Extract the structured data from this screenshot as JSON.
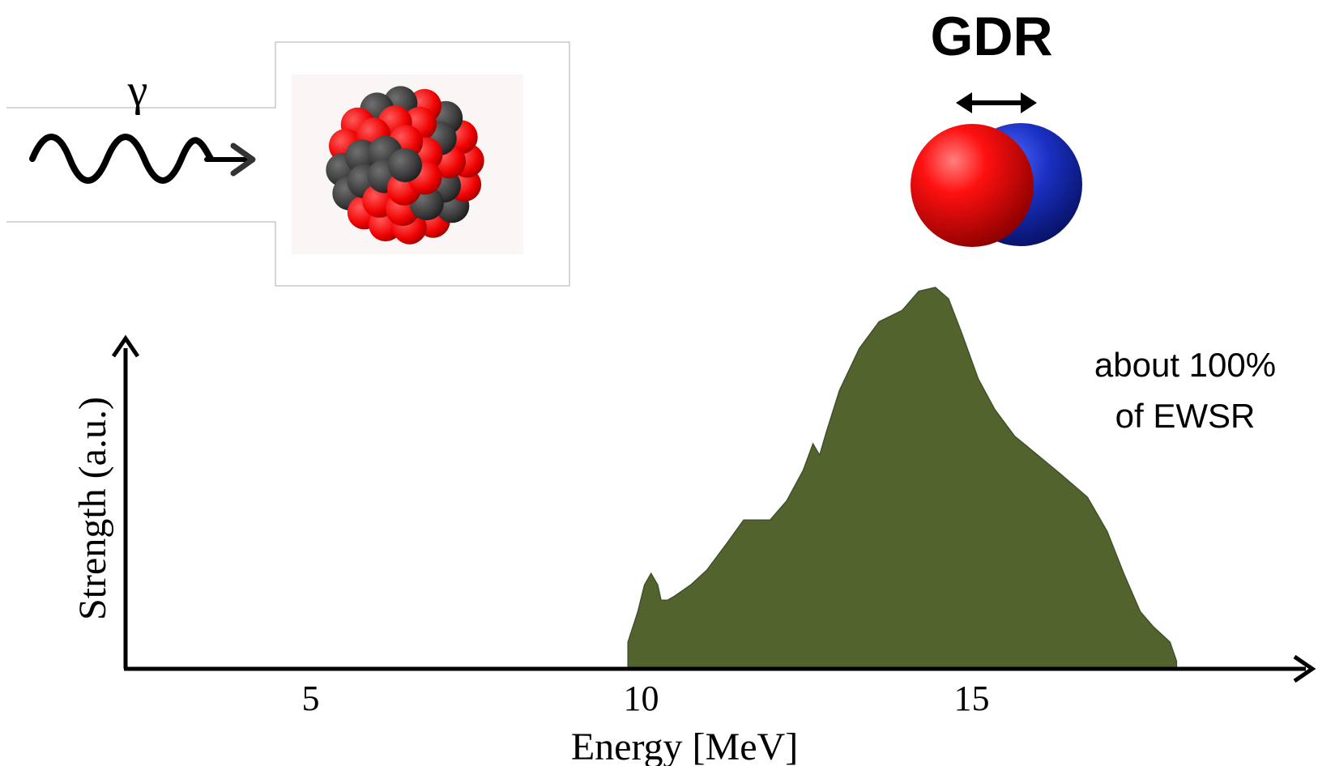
{
  "illustration": {
    "photon_symbol": "γ",
    "mode_label": "GDR",
    "proton_color": "#ff0000",
    "neutron_color": "#3a3a3a",
    "proton_sphere_color": "#e80000",
    "neutron_sphere_color": "#1020a0",
    "icons": [
      "photon-wave-icon",
      "nucleus-icon",
      "dipole-oscillation-icon"
    ]
  },
  "annotation": {
    "line1": "about 100%",
    "line2": "of EWSR"
  },
  "chart_data": {
    "type": "area",
    "title": "",
    "xlabel": "Energy [MeV]",
    "ylabel": "Strength (a.u.)",
    "x_ticks": [
      "5",
      "10",
      "15"
    ],
    "xlim": [
      2.2,
      19.5
    ],
    "ylim": [
      0,
      1
    ],
    "grid": false,
    "fill_color": "#53632d",
    "series": [
      {
        "x": [
          9.8,
          9.8,
          9.95,
          10.05,
          10.15,
          10.25,
          10.3,
          10.4,
          10.5,
          10.75,
          11.0,
          11.3,
          11.55,
          11.75,
          11.95,
          12.2,
          12.45,
          12.6,
          12.7,
          12.8,
          13.0,
          13.3,
          13.6,
          13.95,
          14.2,
          14.45,
          14.65,
          14.85,
          15.1,
          15.35,
          15.65,
          16.0,
          16.35,
          16.75,
          17.05,
          17.3,
          17.55,
          17.75,
          18.0,
          18.1,
          18.1
        ],
        "y": [
          0.0,
          0.07,
          0.15,
          0.22,
          0.25,
          0.22,
          0.18,
          0.18,
          0.19,
          0.22,
          0.26,
          0.33,
          0.39,
          0.39,
          0.39,
          0.44,
          0.52,
          0.59,
          0.56,
          0.62,
          0.73,
          0.84,
          0.91,
          0.94,
          0.99,
          1.0,
          0.97,
          0.88,
          0.76,
          0.68,
          0.61,
          0.56,
          0.51,
          0.45,
          0.36,
          0.25,
          0.15,
          0.11,
          0.07,
          0.02,
          0.0
        ]
      }
    ]
  }
}
